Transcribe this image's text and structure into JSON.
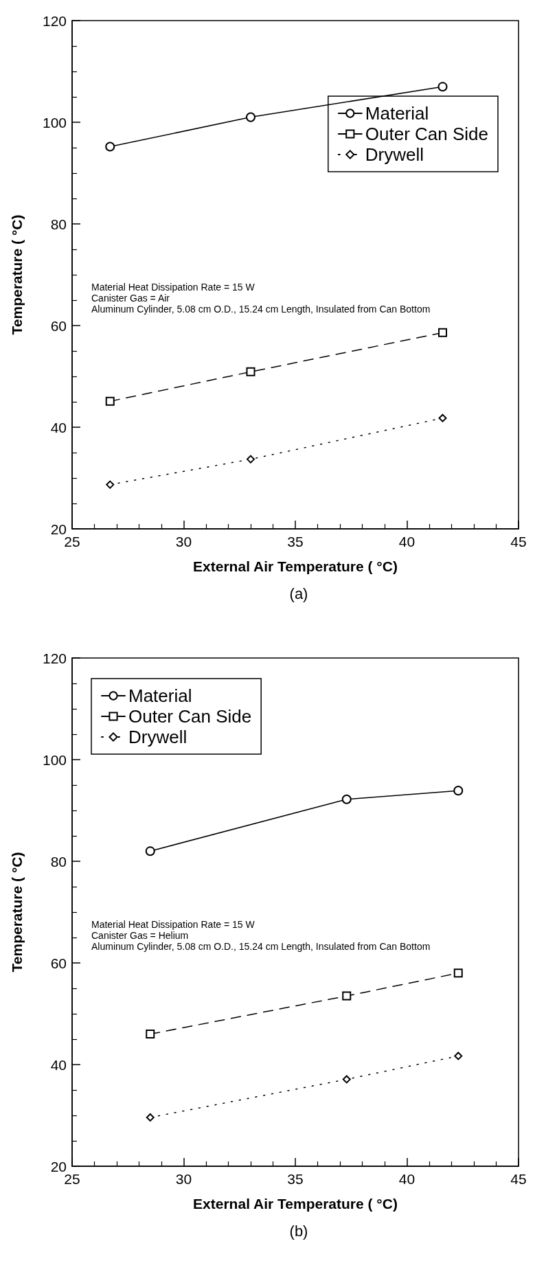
{
  "chart_data": [
    {
      "type": "line",
      "title": "(a)",
      "xlabel": "External Air Temperature ( °C)",
      "ylabel": "Temperature ( °C)",
      "annotations": [
        "Material Heat Dissipation Rate = 15 W\nCanister Gas = Air\nAluminum Cylinder, 5.08 cm O.D., 15.24 cm Length, Insulated from Can Bottom"
      ],
      "legend": "top right",
      "grid": false,
      "xlim": [
        25,
        45
      ],
      "xticks": [
        25,
        30,
        35,
        40,
        45
      ],
      "ylim": [
        20,
        120
      ],
      "yticks": [
        20,
        40,
        60,
        80,
        100,
        120
      ],
      "series": [
        {
          "name": "Material",
          "color": "#000000",
          "marker": "circle",
          "line_style": "solid",
          "x": [
            26.7,
            33.0,
            41.6
          ],
          "values": [
            95.2,
            101,
            107
          ]
        },
        {
          "name": "Outer Can Side",
          "color": "#000000",
          "marker": "square",
          "line_style": "dashed",
          "x": [
            26.7,
            33.0,
            41.6
          ],
          "values": [
            45.1,
            50.9,
            58.6
          ]
        },
        {
          "name": "Drywell",
          "color": "#000000",
          "marker": "diamond",
          "line_style": "dotted",
          "x": [
            26.7,
            33.0,
            41.6
          ],
          "values": [
            28.7,
            33.7,
            41.8
          ]
        }
      ]
    },
    {
      "type": "line",
      "title": "(b)",
      "xlabel": "External Air Temperature ( °C)",
      "ylabel": "Temperature ( °C)",
      "annotations": [
        "Material Heat Dissipation Rate = 15 W\nCanister Gas = Helium\nAluminum Cylinder, 5.08 cm O.D., 15.24 cm Length, Insulated from Can Bottom"
      ],
      "legend": "top left",
      "grid": false,
      "xlim": [
        25,
        45
      ],
      "xticks": [
        25,
        30,
        35,
        40,
        45
      ],
      "ylim": [
        20,
        120
      ],
      "yticks": [
        20,
        40,
        60,
        80,
        100,
        120
      ],
      "series": [
        {
          "name": "Material",
          "color": "#000000",
          "marker": "circle",
          "line_style": "solid",
          "x": [
            28.5,
            37.3,
            42.3
          ],
          "values": [
            82,
            92.2,
            93.9
          ]
        },
        {
          "name": "Outer Can Side",
          "color": "#000000",
          "marker": "square",
          "line_style": "dashed",
          "x": [
            28.5,
            37.3,
            42.3
          ],
          "values": [
            46,
            53.5,
            58
          ]
        },
        {
          "name": "Drywell",
          "color": "#000000",
          "marker": "diamond",
          "line_style": "dotted",
          "x": [
            28.5,
            37.3,
            42.3
          ],
          "values": [
            29.6,
            37.1,
            41.7
          ]
        }
      ]
    }
  ]
}
